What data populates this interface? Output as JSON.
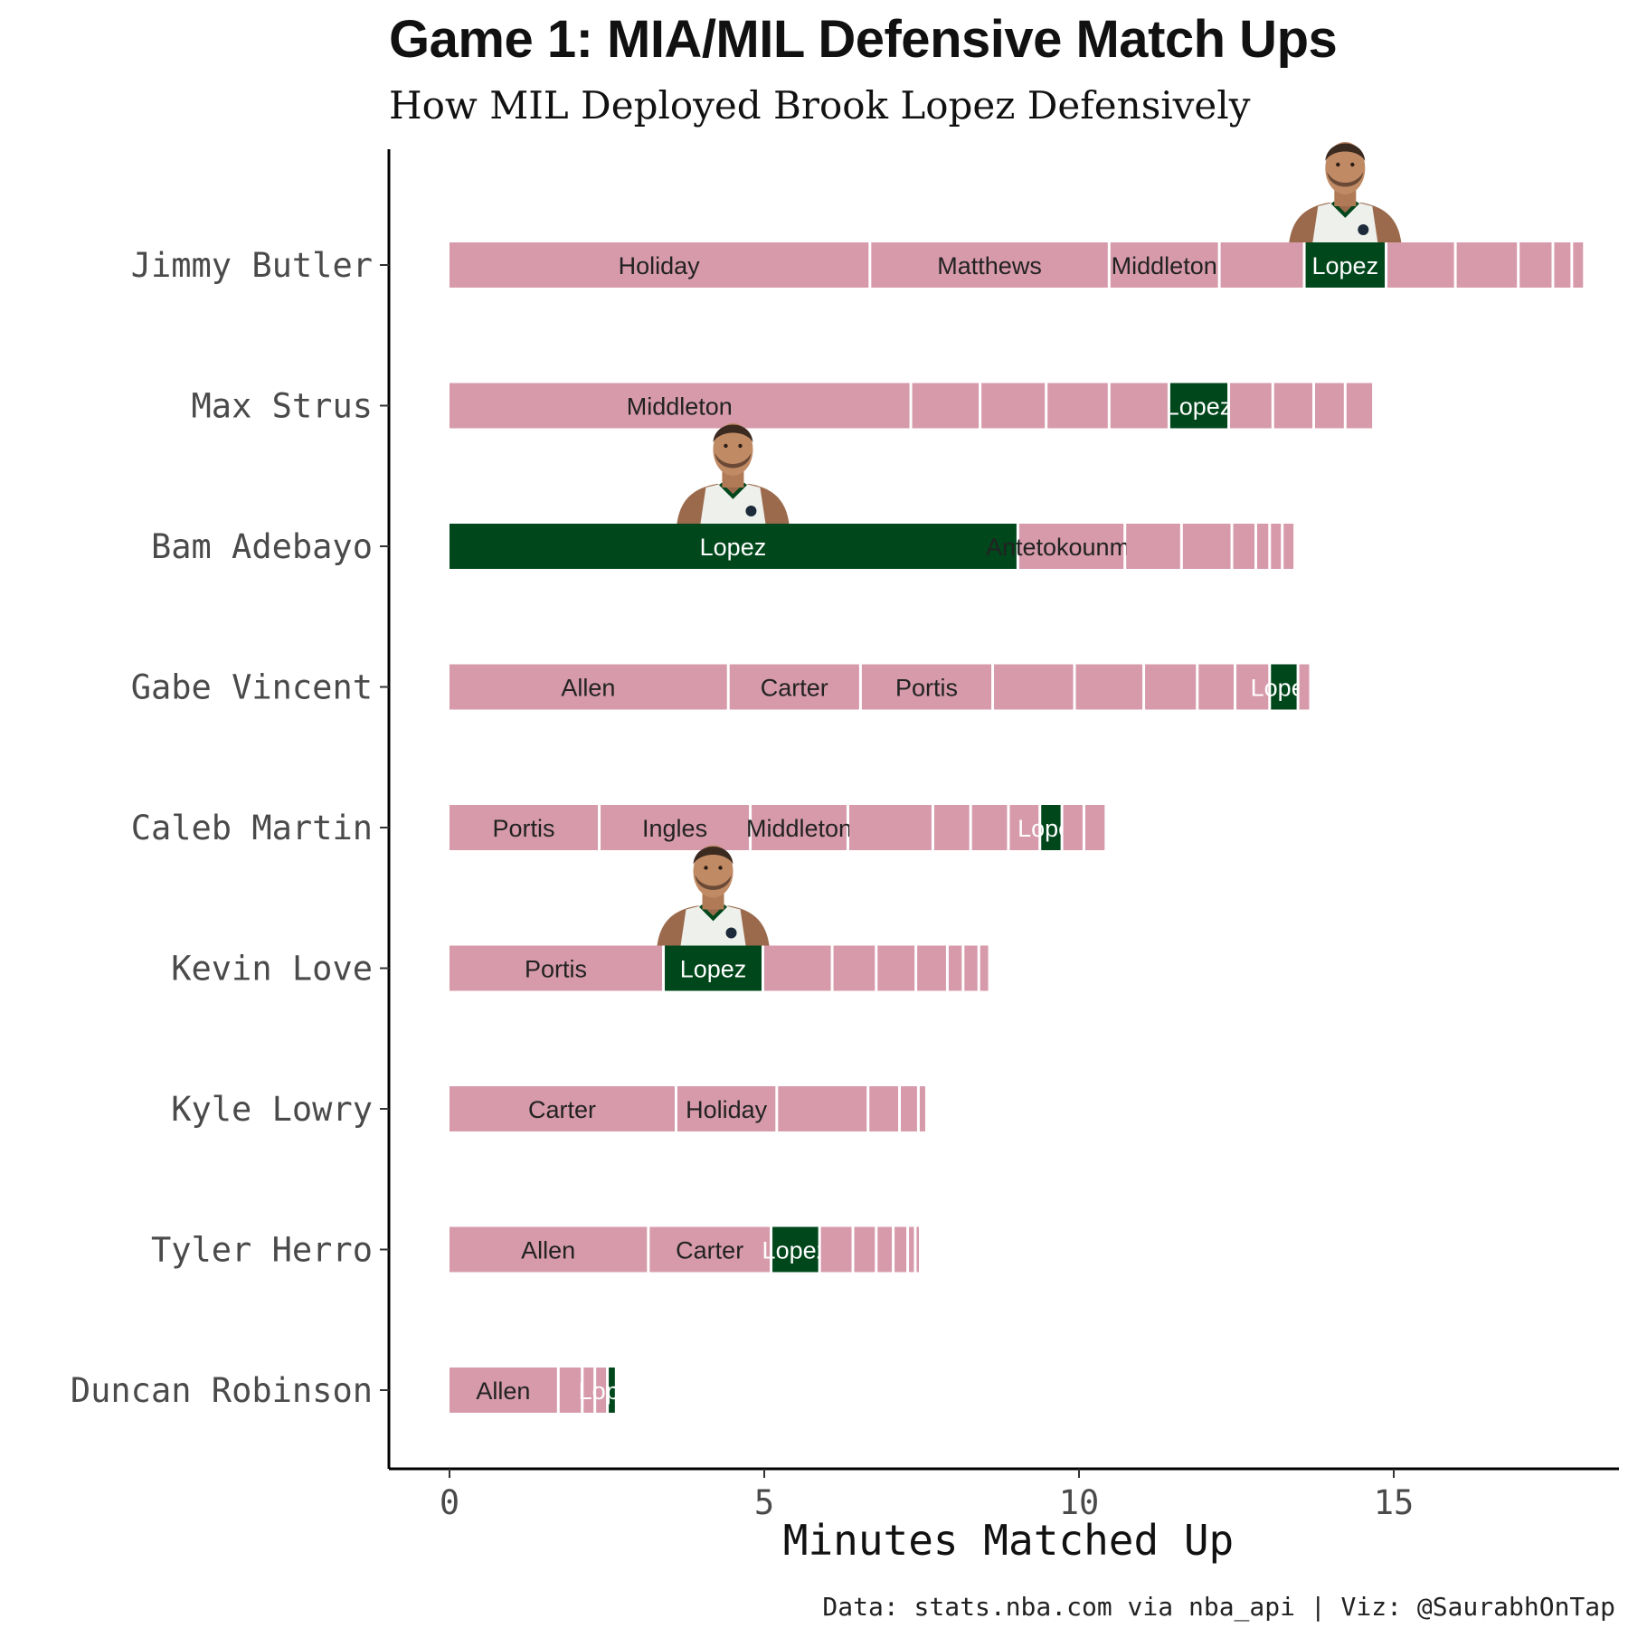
{
  "title": "Game 1: MIA/MIL Defensive Match Ups",
  "subtitle": "How MIL Deployed Brook Lopez Defensively",
  "caption": "Data: stats.nba.com via nba_api | Viz: @SaurabhOnTap",
  "colors": {
    "other_defender": "#d69aab",
    "lopez": "#00471b",
    "axis": "#000000",
    "label_dark": "#222222",
    "label_light": "#ffffff"
  },
  "icons": {
    "headshot": "brook-lopez-headshot-icon"
  },
  "chart_data": {
    "type": "bar",
    "orientation": "horizontal",
    "stacked": true,
    "xlabel": "Minutes Matched Up",
    "ylabel": "",
    "xlim": [
      -0.9,
      18.8
    ],
    "xticks": [
      0,
      5,
      10,
      15
    ],
    "grid": false,
    "legend": "none",
    "highlight_defender": "Lopez",
    "rows": [
      {
        "player": "Jimmy Butler",
        "segments": [
          {
            "defender": "Holiday",
            "minutes": 6.7
          },
          {
            "defender": "Matthews",
            "minutes": 3.8
          },
          {
            "defender": "Middleton",
            "minutes": 1.75
          },
          {
            "defender": "",
            "minutes": 1.35
          },
          {
            "defender": "Lopez",
            "minutes": 1.3
          },
          {
            "defender": "",
            "minutes": 1.1
          },
          {
            "defender": "",
            "minutes": 1.0
          },
          {
            "defender": "",
            "minutes": 0.55
          },
          {
            "defender": "",
            "minutes": 0.3
          },
          {
            "defender": "",
            "minutes": 0.2
          }
        ]
      },
      {
        "player": "Max Strus",
        "segments": [
          {
            "defender": "Middleton",
            "minutes": 7.35
          },
          {
            "defender": "",
            "minutes": 1.1
          },
          {
            "defender": "",
            "minutes": 1.05
          },
          {
            "defender": "",
            "minutes": 1.0
          },
          {
            "defender": "",
            "minutes": 0.95
          },
          {
            "defender": "Lopez",
            "minutes": 0.95
          },
          {
            "defender": "",
            "minutes": 0.7
          },
          {
            "defender": "",
            "minutes": 0.65
          },
          {
            "defender": "",
            "minutes": 0.5
          },
          {
            "defender": "",
            "minutes": 0.45
          }
        ]
      },
      {
        "player": "Bam Adebayo",
        "segments": [
          {
            "defender": "Lopez",
            "minutes": 9.05
          },
          {
            "defender": "Antetokounmpo",
            "minutes": 1.7
          },
          {
            "defender": "",
            "minutes": 0.9
          },
          {
            "defender": "",
            "minutes": 0.8
          },
          {
            "defender": "",
            "minutes": 0.38
          },
          {
            "defender": "",
            "minutes": 0.22
          },
          {
            "defender": "",
            "minutes": 0.2
          },
          {
            "defender": "",
            "minutes": 0.2
          }
        ]
      },
      {
        "player": "Gabe Vincent",
        "segments": [
          {
            "defender": "Allen",
            "minutes": 4.45
          },
          {
            "defender": "Carter",
            "minutes": 2.1
          },
          {
            "defender": "Portis",
            "minutes": 2.1
          },
          {
            "defender": "",
            "minutes": 1.3
          },
          {
            "defender": "",
            "minutes": 1.1
          },
          {
            "defender": "",
            "minutes": 0.85
          },
          {
            "defender": "",
            "minutes": 0.6
          },
          {
            "defender": "",
            "minutes": 0.55
          },
          {
            "defender": "Lopez",
            "minutes": 0.45
          },
          {
            "defender": "",
            "minutes": 0.2
          }
        ]
      },
      {
        "player": "Caleb Martin",
        "segments": [
          {
            "defender": "Portis",
            "minutes": 2.4
          },
          {
            "defender": "Ingles",
            "minutes": 2.4
          },
          {
            "defender": "Middleton",
            "minutes": 1.55
          },
          {
            "defender": "",
            "minutes": 1.35
          },
          {
            "defender": "",
            "minutes": 0.6
          },
          {
            "defender": "",
            "minutes": 0.6
          },
          {
            "defender": "",
            "minutes": 0.5
          },
          {
            "defender": "Lopez",
            "minutes": 0.35
          },
          {
            "defender": "",
            "minutes": 0.35
          },
          {
            "defender": "",
            "minutes": 0.35
          }
        ]
      },
      {
        "player": "Kevin Love",
        "segments": [
          {
            "defender": "Portis",
            "minutes": 3.42
          },
          {
            "defender": "Lopez",
            "minutes": 1.58
          },
          {
            "defender": "",
            "minutes": 1.1
          },
          {
            "defender": "",
            "minutes": 0.7
          },
          {
            "defender": "",
            "minutes": 0.63
          },
          {
            "defender": "",
            "minutes": 0.5
          },
          {
            "defender": "",
            "minutes": 0.25
          },
          {
            "defender": "",
            "minutes": 0.25
          },
          {
            "defender": "",
            "minutes": 0.17
          }
        ]
      },
      {
        "player": "Kyle Lowry",
        "segments": [
          {
            "defender": "Carter",
            "minutes": 3.62
          },
          {
            "defender": "Holiday",
            "minutes": 1.6
          },
          {
            "defender": "",
            "minutes": 1.45
          },
          {
            "defender": "",
            "minutes": 0.5
          },
          {
            "defender": "",
            "minutes": 0.3
          },
          {
            "defender": "",
            "minutes": 0.13
          }
        ]
      },
      {
        "player": "Tyler Herro",
        "segments": [
          {
            "defender": "Allen",
            "minutes": 3.18
          },
          {
            "defender": "Carter",
            "minutes": 1.95
          },
          {
            "defender": "Lopez",
            "minutes": 0.77
          },
          {
            "defender": "",
            "minutes": 0.53
          },
          {
            "defender": "",
            "minutes": 0.37
          },
          {
            "defender": "",
            "minutes": 0.27
          },
          {
            "defender": "",
            "minutes": 0.23
          },
          {
            "defender": "",
            "minutes": 0.12
          },
          {
            "defender": "",
            "minutes": 0.08
          }
        ]
      },
      {
        "player": "Duncan Robinson",
        "segments": [
          {
            "defender": "Allen",
            "minutes": 1.75
          },
          {
            "defender": "",
            "minutes": 0.38
          },
          {
            "defender": "",
            "minutes": 0.2
          },
          {
            "defender": "",
            "minutes": 0.2
          },
          {
            "defender": "Lopez",
            "minutes": 0.14
          }
        ]
      }
    ]
  }
}
